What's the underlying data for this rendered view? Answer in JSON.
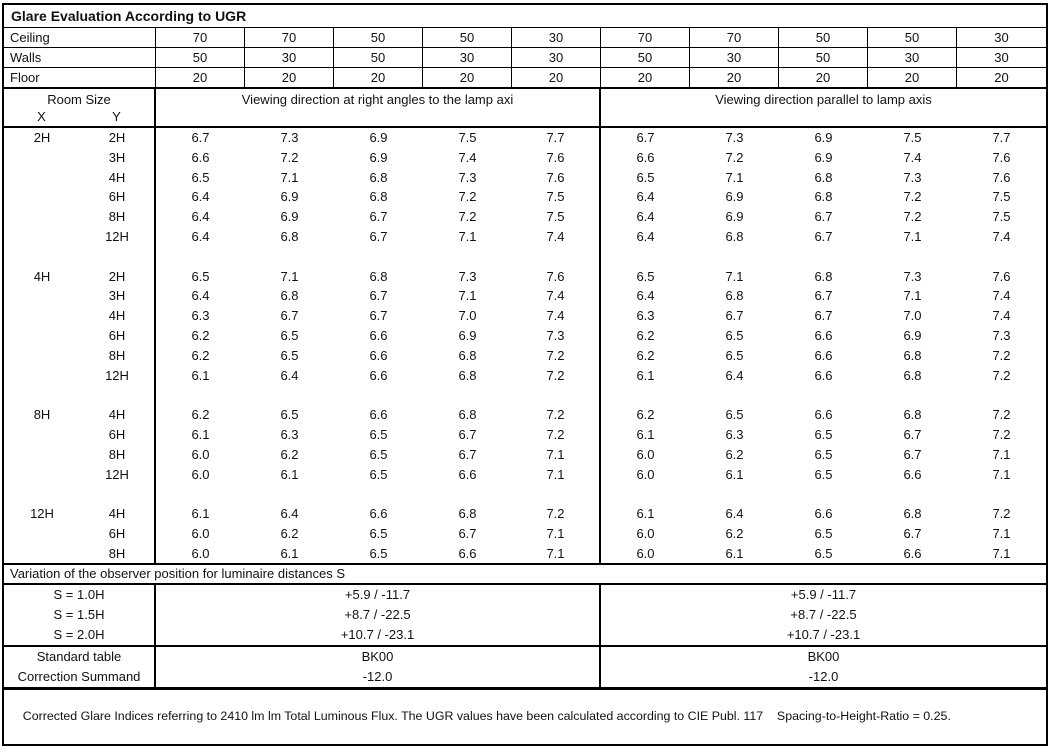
{
  "title": "Glare Evaluation According to UGR",
  "surface_rows": [
    {
      "label": "Ceiling",
      "values": [
        "70",
        "70",
        "50",
        "50",
        "30",
        "70",
        "70",
        "50",
        "50",
        "30"
      ]
    },
    {
      "label": "Walls",
      "values": [
        "50",
        "30",
        "50",
        "30",
        "30",
        "50",
        "30",
        "50",
        "30",
        "30"
      ]
    },
    {
      "label": "Floor",
      "values": [
        "20",
        "20",
        "20",
        "20",
        "20",
        "20",
        "20",
        "20",
        "20",
        "20"
      ]
    }
  ],
  "header": {
    "room_size": "Room Size",
    "x": "X",
    "y": "Y",
    "left": "Viewing direction at right angles to the lamp axi",
    "right": "Viewing direction parallel to lamp axis"
  },
  "blocks": [
    {
      "x": "2H",
      "rows": [
        {
          "y": "2H",
          "values": [
            "6.7",
            "7.3",
            "6.9",
            "7.5",
            "7.7",
            "6.7",
            "7.3",
            "6.9",
            "7.5",
            "7.7"
          ]
        },
        {
          "y": "3H",
          "values": [
            "6.6",
            "7.2",
            "6.9",
            "7.4",
            "7.6",
            "6.6",
            "7.2",
            "6.9",
            "7.4",
            "7.6"
          ]
        },
        {
          "y": "4H",
          "values": [
            "6.5",
            "7.1",
            "6.8",
            "7.3",
            "7.6",
            "6.5",
            "7.1",
            "6.8",
            "7.3",
            "7.6"
          ]
        },
        {
          "y": "6H",
          "values": [
            "6.4",
            "6.9",
            "6.8",
            "7.2",
            "7.5",
            "6.4",
            "6.9",
            "6.8",
            "7.2",
            "7.5"
          ]
        },
        {
          "y": "8H",
          "values": [
            "6.4",
            "6.9",
            "6.7",
            "7.2",
            "7.5",
            "6.4",
            "6.9",
            "6.7",
            "7.2",
            "7.5"
          ]
        },
        {
          "y": "12H",
          "values": [
            "6.4",
            "6.8",
            "6.7",
            "7.1",
            "7.4",
            "6.4",
            "6.8",
            "6.7",
            "7.1",
            "7.4"
          ]
        }
      ]
    },
    {
      "x": "4H",
      "rows": [
        {
          "y": "2H",
          "values": [
            "6.5",
            "7.1",
            "6.8",
            "7.3",
            "7.6",
            "6.5",
            "7.1",
            "6.8",
            "7.3",
            "7.6"
          ]
        },
        {
          "y": "3H",
          "values": [
            "6.4",
            "6.8",
            "6.7",
            "7.1",
            "7.4",
            "6.4",
            "6.8",
            "6.7",
            "7.1",
            "7.4"
          ]
        },
        {
          "y": "4H",
          "values": [
            "6.3",
            "6.7",
            "6.7",
            "7.0",
            "7.4",
            "6.3",
            "6.7",
            "6.7",
            "7.0",
            "7.4"
          ]
        },
        {
          "y": "6H",
          "values": [
            "6.2",
            "6.5",
            "6.6",
            "6.9",
            "7.3",
            "6.2",
            "6.5",
            "6.6",
            "6.9",
            "7.3"
          ]
        },
        {
          "y": "8H",
          "values": [
            "6.2",
            "6.5",
            "6.6",
            "6.8",
            "7.2",
            "6.2",
            "6.5",
            "6.6",
            "6.8",
            "7.2"
          ]
        },
        {
          "y": "12H",
          "values": [
            "6.1",
            "6.4",
            "6.6",
            "6.8",
            "7.2",
            "6.1",
            "6.4",
            "6.6",
            "6.8",
            "7.2"
          ]
        }
      ]
    },
    {
      "x": "8H",
      "rows": [
        {
          "y": "4H",
          "values": [
            "6.2",
            "6.5",
            "6.6",
            "6.8",
            "7.2",
            "6.2",
            "6.5",
            "6.6",
            "6.8",
            "7.2"
          ]
        },
        {
          "y": "6H",
          "values": [
            "6.1",
            "6.3",
            "6.5",
            "6.7",
            "7.2",
            "6.1",
            "6.3",
            "6.5",
            "6.7",
            "7.2"
          ]
        },
        {
          "y": "8H",
          "values": [
            "6.0",
            "6.2",
            "6.5",
            "6.7",
            "7.1",
            "6.0",
            "6.2",
            "6.5",
            "6.7",
            "7.1"
          ]
        },
        {
          "y": "12H",
          "values": [
            "6.0",
            "6.1",
            "6.5",
            "6.6",
            "7.1",
            "6.0",
            "6.1",
            "6.5",
            "6.6",
            "7.1"
          ]
        }
      ]
    },
    {
      "x": "12H",
      "rows": [
        {
          "y": "4H",
          "values": [
            "6.1",
            "6.4",
            "6.6",
            "6.8",
            "7.2",
            "6.1",
            "6.4",
            "6.6",
            "6.8",
            "7.2"
          ]
        },
        {
          "y": "6H",
          "values": [
            "6.0",
            "6.2",
            "6.5",
            "6.7",
            "7.1",
            "6.0",
            "6.2",
            "6.5",
            "6.7",
            "7.1"
          ]
        },
        {
          "y": "8H",
          "values": [
            "6.0",
            "6.1",
            "6.5",
            "6.6",
            "7.1",
            "6.0",
            "6.1",
            "6.5",
            "6.6",
            "7.1"
          ]
        }
      ]
    }
  ],
  "variation": {
    "title": "Variation of the observer position for luminaire distances S",
    "rows": [
      {
        "label": "S = 1.0H",
        "left": "+5.9 / -11.7",
        "right": "+5.9 / -11.7"
      },
      {
        "label": "S = 1.5H",
        "left": "+8.7 / -22.5",
        "right": "+8.7 / -22.5"
      },
      {
        "label": "S = 2.0H",
        "left": "+10.7 / -23.1",
        "right": "+10.7 / -23.1"
      }
    ]
  },
  "summary": {
    "rows": [
      {
        "label": "Standard table",
        "left": "BK00",
        "right": "BK00"
      },
      {
        "label": "Correction Summand",
        "left": "-12.0",
        "right": "-12.0"
      }
    ]
  },
  "footer": {
    "text": "Corrected Glare Indices referring to 2410 lm lm Total Luminous Flux. The UGR values have been calculated according to CIE Publ. 117    Spacing-to-Height-Ratio = 0.25."
  }
}
